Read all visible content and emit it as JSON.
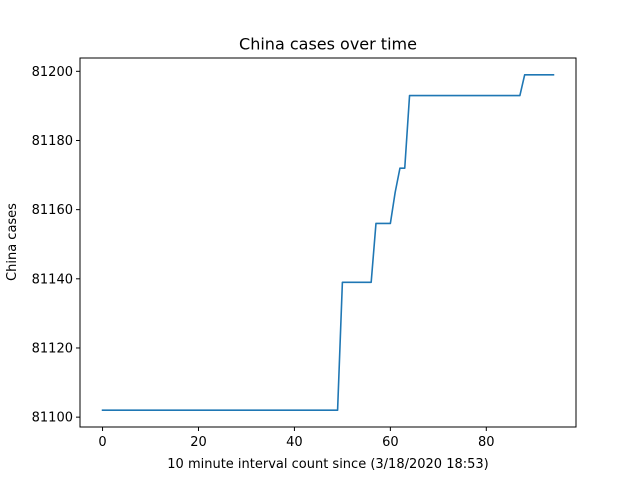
{
  "chart_data": {
    "type": "line",
    "title": "China cases over time",
    "xlabel": "10 minute interval count since (3/18/2020 18:53)",
    "ylabel": "China cases",
    "xlim": [
      -4.7,
      98.7
    ],
    "ylim": [
      81097.15,
      81203.85
    ],
    "xticks": [
      0,
      20,
      40,
      60,
      80
    ],
    "xtick_labels": [
      "0",
      "20",
      "40",
      "60",
      "80"
    ],
    "yticks": [
      81100,
      81120,
      81140,
      81160,
      81180,
      81200
    ],
    "ytick_labels": [
      "81100",
      "81120",
      "81140",
      "81160",
      "81180",
      "81200"
    ],
    "grid": false,
    "series": [
      {
        "color": "#1f77b4",
        "points": [
          [
            0,
            81102
          ],
          [
            49,
            81102
          ],
          [
            50,
            81139
          ],
          [
            56,
            81139
          ],
          [
            57,
            81156
          ],
          [
            60,
            81156
          ],
          [
            61,
            81165
          ],
          [
            62,
            81172
          ],
          [
            63,
            81172
          ],
          [
            64,
            81193
          ],
          [
            87,
            81193
          ],
          [
            88,
            81199
          ],
          [
            94,
            81199
          ]
        ]
      }
    ]
  }
}
